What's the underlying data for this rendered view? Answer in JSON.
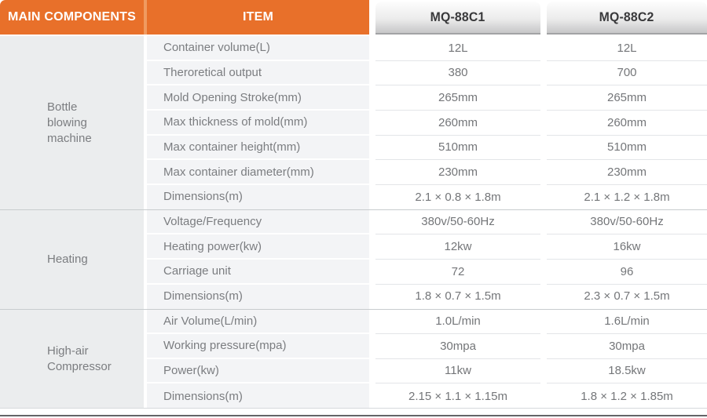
{
  "table": {
    "headers": {
      "main_components": "MAIN COMPONENTS",
      "item": "ITEM",
      "models": [
        "MQ-88C1",
        "MQ-88C2"
      ]
    },
    "sections": [
      {
        "label": "Bottle\nblowing\nmachine"
      },
      {
        "label": "Heating"
      },
      {
        "label": "High-air\nCompressor"
      }
    ],
    "rows": [
      {
        "item": "Container volume(L)",
        "c1": "12L",
        "c2": "12L"
      },
      {
        "item": "Theroretical output",
        "c1": "380",
        "c2": "700"
      },
      {
        "item": "Mold Opening Stroke(mm)",
        "c1": "265mm",
        "c2": "265mm"
      },
      {
        "item": "Max thickness of mold(mm)",
        "c1": "260mm",
        "c2": "260mm"
      },
      {
        "item": "Max container height(mm)",
        "c1": "510mm",
        "c2": "510mm"
      },
      {
        "item": "Max container diameter(mm)",
        "c1": "230mm",
        "c2": "230mm"
      },
      {
        "item": "Dimensions(m)",
        "c1": "2.1 × 0.8 × 1.8m",
        "c2": "2.1 × 1.2 × 1.8m"
      },
      {
        "item": "Voltage/Frequency",
        "c1": "380v/50-60Hz",
        "c2": "380v/50-60Hz"
      },
      {
        "item": "Heating power(kw)",
        "c1": "12kw",
        "c2": "16kw"
      },
      {
        "item": "Carriage unit",
        "c1": "72",
        "c2": "96"
      },
      {
        "item": "Dimensions(m)",
        "c1": "1.8 × 0.7 × 1.5m",
        "c2": "2.3 × 0.7 × 1.5m"
      },
      {
        "item": "Air Volume(L/min)",
        "c1": "1.0L/min",
        "c2": "1.6L/min"
      },
      {
        "item": "Working pressure(mpa)",
        "c1": "30mpa",
        "c2": "30mpa"
      },
      {
        "item": "Power(kw)",
        "c1": "11kw",
        "c2": "18.5kw"
      },
      {
        "item": "Dimensions(m)",
        "c1": "2.15 × 1.1 × 1.15m",
        "c2": "1.8 × 1.2 × 1.85m"
      }
    ]
  },
  "colors": {
    "accent_orange": "#e8702a",
    "model_header_text": "#39393b",
    "body_text": "#7b7d80"
  }
}
